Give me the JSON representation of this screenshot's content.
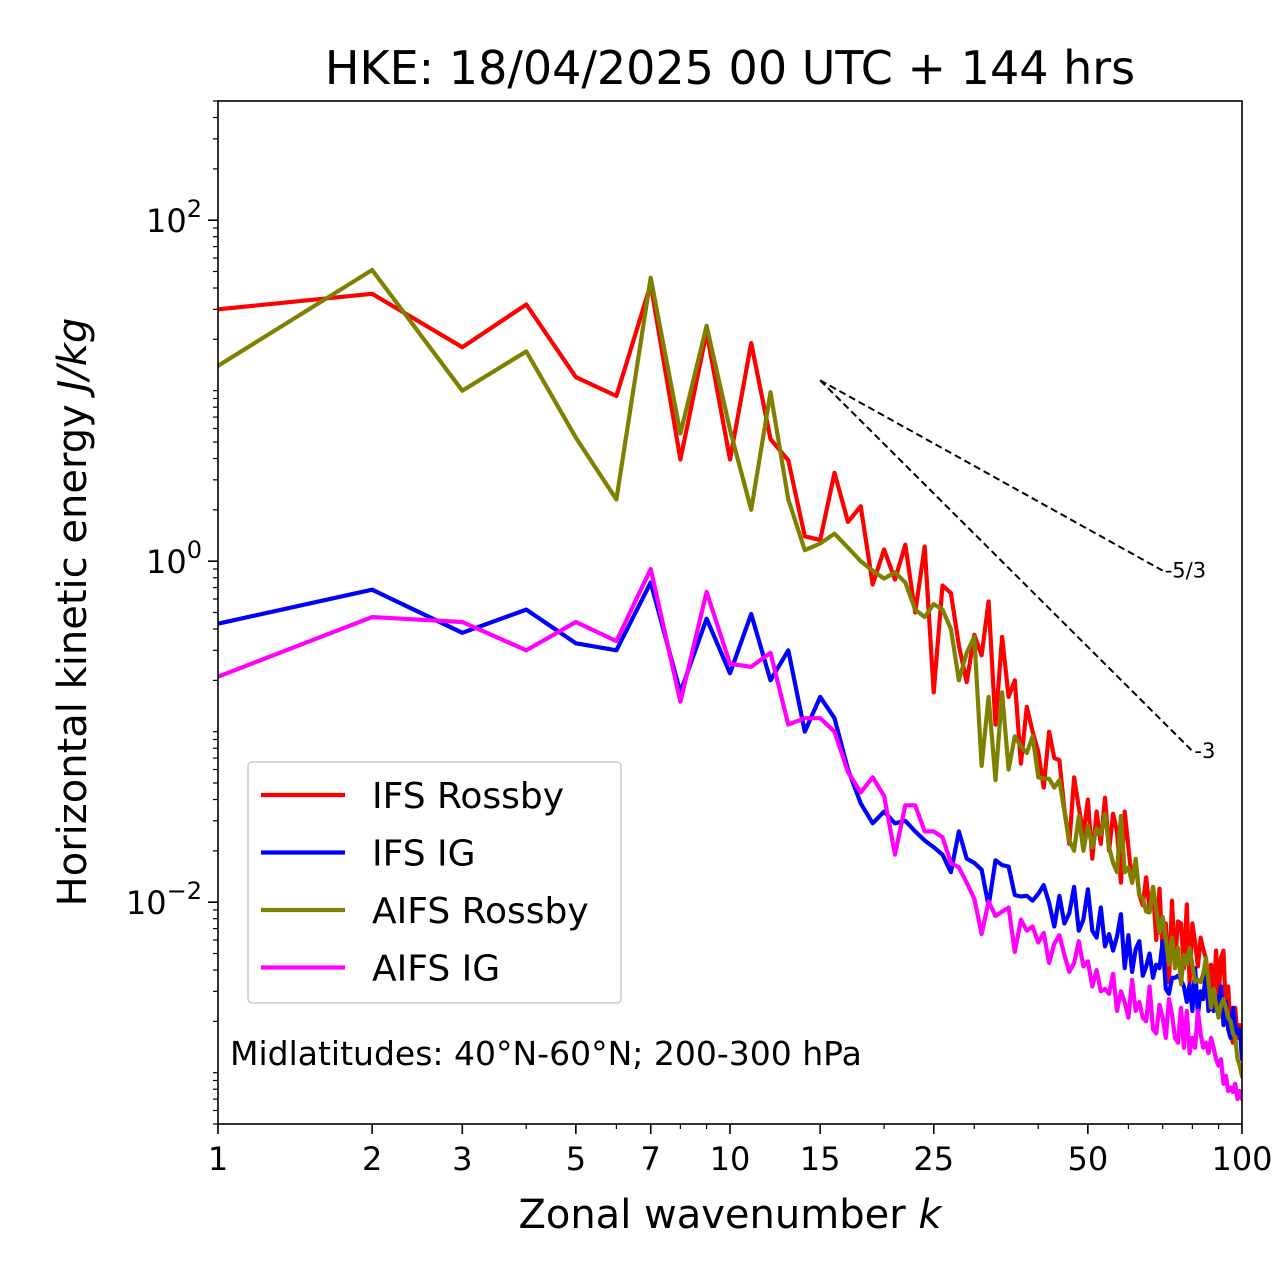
{
  "chart_data": {
    "type": "line",
    "title": "HKE: 18/04/2025 00 UTC + 144 hrs",
    "xlabel": "Zonal wavenumber",
    "xlabel_var": "k",
    "ylabel": "Horizontal kinetic energy",
    "ylabel_unit": "J/kg",
    "xscale": "log",
    "yscale": "log",
    "xlim": [
      1,
      100
    ],
    "ylim": [
      0.0005,
      500
    ],
    "x_ticks": [
      1,
      2,
      3,
      5,
      7,
      10,
      15,
      25,
      50,
      100
    ],
    "y_ticks": [
      {
        "value": 0.01,
        "base": "10",
        "exp": "−2"
      },
      {
        "value": 1,
        "base": "10",
        "exp": "0"
      },
      {
        "value": 100,
        "base": "10",
        "exp": "2"
      }
    ],
    "annotation": "Midlatitudes: 40°N-60°N; 200-300 hPa",
    "legend_position": "lower-left",
    "reference_lines": [
      {
        "label": "-5/3",
        "x": [
          15,
          70
        ],
        "y": [
          11.5,
          0.88
        ]
      },
      {
        "label": "-3",
        "x": [
          15,
          80
        ],
        "y": [
          11.5,
          0.077
        ]
      }
    ],
    "series": [
      {
        "name": "IFS Rossby",
        "color": "#ff0000",
        "x": [
          1,
          2,
          3,
          4,
          5,
          6,
          7,
          8,
          9,
          10,
          11,
          12,
          13,
          14,
          15,
          16,
          17,
          18,
          19,
          20,
          21,
          22,
          23,
          24,
          25,
          26,
          27,
          28,
          29,
          30,
          31,
          32,
          33,
          34,
          35,
          36,
          37,
          38,
          39,
          40,
          41,
          42,
          43,
          44,
          45,
          46,
          47,
          48,
          49,
          50,
          51,
          52,
          53,
          54,
          55,
          56,
          57,
          58,
          59,
          60,
          61,
          62,
          63,
          64,
          65,
          66,
          67,
          68,
          69,
          70,
          71,
          72,
          73,
          74,
          75,
          76,
          77,
          78,
          79,
          80,
          81,
          82,
          83,
          84,
          85,
          86,
          87,
          88,
          89,
          90,
          91,
          92,
          93,
          94,
          95,
          96,
          97,
          98,
          99,
          100
        ],
        "y": [
          30,
          37,
          18,
          32,
          12,
          9.3,
          42,
          3.95,
          22,
          3.95,
          19,
          5.2,
          3.9,
          1.4,
          1.33,
          3.3,
          1.7,
          2.1,
          0.73,
          1.17,
          0.78,
          1.25,
          0.5,
          1.22,
          0.17,
          0.72,
          0.65,
          0.32,
          0.195,
          0.37,
          0.28,
          0.58,
          0.11,
          0.36,
          0.16,
          0.2,
          0.065,
          0.14,
          0.1,
          0.076,
          0.047,
          0.1,
          0.07,
          0.068,
          0.035,
          0.022,
          0.054,
          0.036,
          0.025,
          0.04,
          0.018,
          0.034,
          0.022,
          0.041,
          0.02,
          0.033,
          0.026,
          0.013,
          0.034,
          0.021,
          0.013,
          0.017,
          0.011,
          0.0096,
          0.014,
          0.009,
          0.0122,
          0.006,
          0.012,
          0.005,
          0.0075,
          0.0034,
          0.0102,
          0.0044,
          0.0077,
          0.0075,
          0.0041,
          0.0097,
          0.0034,
          0.0075,
          0.0058,
          0.0042,
          0.0062,
          0.0053,
          0.0047,
          0.0033,
          0.0043,
          0.0029,
          0.0052,
          0.0027,
          0.0047,
          0.0052,
          0.0022,
          0.0032,
          0.0017,
          0.0015,
          0.0024,
          0.0016,
          0.0019,
          0.0014
        ]
      },
      {
        "name": "IFS IG",
        "color": "#0000ff",
        "x": [
          1,
          2,
          3,
          4,
          5,
          6,
          7,
          8,
          9,
          10,
          11,
          12,
          13,
          14,
          15,
          16,
          17,
          18,
          19,
          20,
          21,
          22,
          23,
          24,
          25,
          26,
          27,
          28,
          29,
          30,
          31,
          32,
          33,
          34,
          35,
          36,
          37,
          38,
          39,
          40,
          41,
          42,
          43,
          44,
          45,
          46,
          47,
          48,
          49,
          50,
          51,
          52,
          53,
          54,
          55,
          56,
          57,
          58,
          59,
          60,
          61,
          62,
          63,
          64,
          65,
          66,
          67,
          68,
          69,
          70,
          71,
          72,
          73,
          74,
          75,
          76,
          77,
          78,
          79,
          80,
          81,
          82,
          83,
          84,
          85,
          86,
          87,
          88,
          89,
          90,
          91,
          92,
          93,
          94,
          95,
          96,
          97,
          98,
          99,
          100
        ],
        "y": [
          0.43,
          0.68,
          0.38,
          0.52,
          0.33,
          0.3,
          0.75,
          0.17,
          0.46,
          0.22,
          0.49,
          0.2,
          0.3,
          0.1,
          0.16,
          0.12,
          0.06,
          0.038,
          0.029,
          0.034,
          0.029,
          0.03,
          0.026,
          0.023,
          0.021,
          0.019,
          0.015,
          0.026,
          0.018,
          0.017,
          0.0155,
          0.0095,
          0.0176,
          0.0165,
          0.0162,
          0.011,
          0.0108,
          0.0109,
          0.0102,
          0.0112,
          0.0126,
          0.0099,
          0.0072,
          0.0109,
          0.0075,
          0.0086,
          0.0123,
          0.0068,
          0.0079,
          0.0119,
          0.0068,
          0.0062,
          0.0093,
          0.0055,
          0.0065,
          0.0052,
          0.0063,
          0.0085,
          0.0041,
          0.0064,
          0.0039,
          0.0053,
          0.0059,
          0.0037,
          0.0042,
          0.005,
          0.0036,
          0.0043,
          0.0041,
          0.0059,
          0.0031,
          0.0029,
          0.0036,
          0.0036,
          0.0037,
          0.0035,
          0.0032,
          0.0026,
          0.0033,
          0.0023,
          0.0041,
          0.0022,
          0.003,
          0.0027,
          0.0039,
          0.0023,
          0.0025,
          0.0023,
          0.0028,
          0.0022,
          0.0032,
          0.0019,
          0.0026,
          0.0018,
          0.0016,
          0.0024,
          0.0019,
          0.0017,
          0.0018,
          0.0012
        ]
      },
      {
        "name": "AIFS Rossby",
        "color": "#808000",
        "x": [
          1,
          2,
          3,
          4,
          5,
          6,
          7,
          8,
          9,
          10,
          11,
          12,
          13,
          14,
          15,
          16,
          17,
          18,
          19,
          20,
          21,
          22,
          23,
          24,
          25,
          26,
          27,
          28,
          29,
          30,
          31,
          32,
          33,
          34,
          35,
          36,
          37,
          38,
          39,
          40,
          41,
          42,
          43,
          44,
          45,
          46,
          47,
          48,
          49,
          50,
          51,
          52,
          53,
          54,
          55,
          56,
          57,
          58,
          59,
          60,
          61,
          62,
          63,
          64,
          65,
          66,
          67,
          68,
          69,
          70,
          71,
          72,
          73,
          74,
          75,
          76,
          77,
          78,
          79,
          80,
          81,
          82,
          83,
          84,
          85,
          86,
          87,
          88,
          89,
          90,
          91,
          92,
          93,
          94,
          95,
          96,
          97,
          98,
          99,
          100
        ],
        "y": [
          14,
          51,
          10,
          17,
          5.3,
          2.3,
          46,
          5.6,
          24,
          5.9,
          2.0,
          9.8,
          2.3,
          1.16,
          1.27,
          1.45,
          1.2,
          1.0,
          0.88,
          0.79,
          0.86,
          0.75,
          0.52,
          0.47,
          0.56,
          0.52,
          0.4,
          0.2,
          0.29,
          0.36,
          0.063,
          0.16,
          0.052,
          0.17,
          0.06,
          0.094,
          0.082,
          0.075,
          0.094,
          0.054,
          0.053,
          0.053,
          0.047,
          0.052,
          0.034,
          0.023,
          0.02,
          0.032,
          0.02,
          0.028,
          0.021,
          0.027,
          0.025,
          0.033,
          0.021,
          0.017,
          0.015,
          0.032,
          0.015,
          0.016,
          0.013,
          0.018,
          0.011,
          0.0105,
          0.0088,
          0.0087,
          0.0123,
          0.0091,
          0.0066,
          0.0082,
          0.0061,
          0.0043,
          0.0062,
          0.0041,
          0.0054,
          0.0033,
          0.0049,
          0.0043,
          0.0054,
          0.0043,
          0.0034,
          0.0035,
          0.0034,
          0.0038,
          0.0047,
          0.0034,
          0.0024,
          0.0031,
          0.0025,
          0.0021,
          0.0025,
          0.0027,
          0.0024,
          0.0021,
          0.002,
          0.0017,
          0.0016,
          0.0012,
          0.0011,
          0.00095
        ]
      },
      {
        "name": "AIFS IG",
        "color": "#ff00ff",
        "x": [
          1,
          2,
          3,
          4,
          5,
          6,
          7,
          8,
          9,
          10,
          11,
          12,
          13,
          14,
          15,
          16,
          17,
          18,
          19,
          20,
          21,
          22,
          23,
          24,
          25,
          26,
          27,
          28,
          29,
          30,
          31,
          32,
          33,
          34,
          35,
          36,
          37,
          38,
          39,
          40,
          41,
          42,
          43,
          44,
          45,
          46,
          47,
          48,
          49,
          50,
          51,
          52,
          53,
          54,
          55,
          56,
          57,
          58,
          59,
          60,
          61,
          62,
          63,
          64,
          65,
          66,
          67,
          68,
          69,
          70,
          71,
          72,
          73,
          74,
          75,
          76,
          77,
          78,
          79,
          80,
          81,
          82,
          83,
          84,
          85,
          86,
          87,
          88,
          89,
          90,
          91,
          92,
          93,
          94,
          95,
          96,
          97,
          98,
          99,
          100
        ],
        "y": [
          0.21,
          0.47,
          0.44,
          0.3,
          0.44,
          0.34,
          0.9,
          0.15,
          0.66,
          0.25,
          0.24,
          0.29,
          0.11,
          0.12,
          0.12,
          0.1,
          0.058,
          0.044,
          0.054,
          0.042,
          0.019,
          0.037,
          0.037,
          0.026,
          0.026,
          0.024,
          0.017,
          0.016,
          0.013,
          0.0105,
          0.0065,
          0.0101,
          0.0083,
          0.0088,
          0.0093,
          0.0051,
          0.0079,
          0.0068,
          0.0072,
          0.0058,
          0.0066,
          0.0044,
          0.0057,
          0.0064,
          0.0049,
          0.0039,
          0.0044,
          0.0059,
          0.0042,
          0.0045,
          0.0032,
          0.004,
          0.003,
          0.0031,
          0.0029,
          0.0038,
          0.0023,
          0.003,
          0.0026,
          0.0021,
          0.0035,
          0.0023,
          0.0026,
          0.0021,
          0.002,
          0.0032,
          0.0018,
          0.0017,
          0.0025,
          0.0021,
          0.0016,
          0.0027,
          0.0022,
          0.0016,
          0.0015,
          0.0024,
          0.0014,
          0.0023,
          0.0013,
          0.0016,
          0.0014,
          0.0023,
          0.0017,
          0.0014,
          0.0015,
          0.0013,
          0.0016,
          0.0014,
          0.0012,
          0.0011,
          0.0012,
          0.00086,
          0.00096,
          0.00078,
          0.00082,
          0.00077,
          0.00086,
          0.0007,
          0.00078,
          0.0007
        ]
      }
    ]
  }
}
